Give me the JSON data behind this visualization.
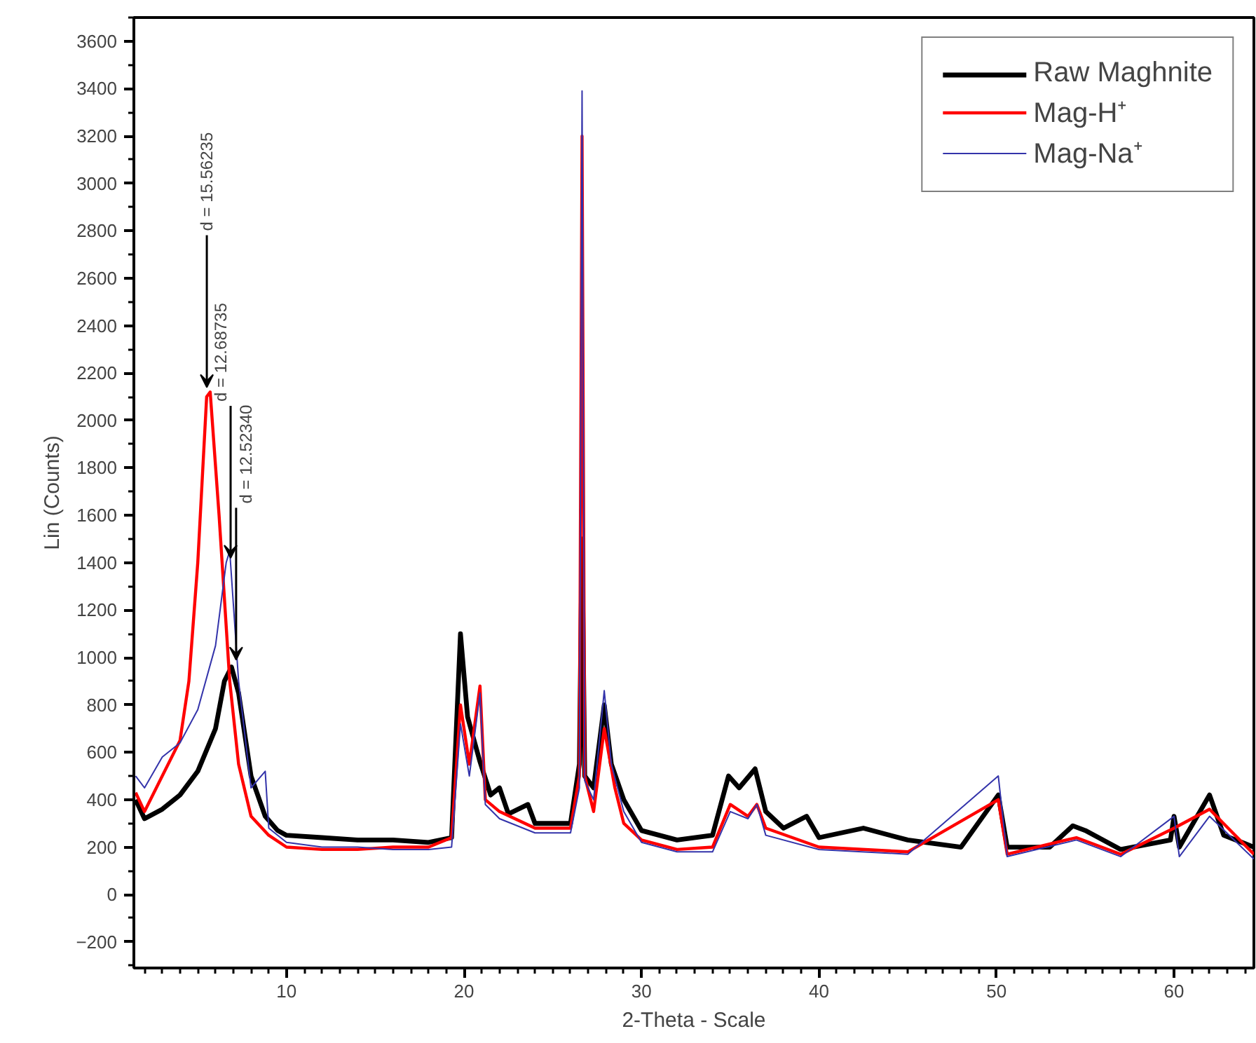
{
  "chart_data": {
    "type": "line",
    "xlabel": "2-Theta - Scale",
    "ylabel": "Lin (Counts)",
    "xlim": [
      1.4,
      64.5
    ],
    "ylim": [
      -310,
      3700
    ],
    "xticks": [
      10,
      20,
      30,
      40,
      50,
      60
    ],
    "yticks": [
      -200,
      0,
      200,
      400,
      600,
      800,
      1000,
      1200,
      1400,
      1600,
      1800,
      2000,
      2200,
      2400,
      2600,
      2800,
      3000,
      3200,
      3400,
      3600
    ],
    "grid": false,
    "legend": "top right",
    "marker": "none",
    "line_style": "solid",
    "series": [
      {
        "name": "Raw Maghnite",
        "color": "#000000",
        "x": [
          1.5,
          2,
          3,
          4,
          5,
          6,
          6.5,
          6.9,
          7.3,
          8,
          8.8,
          9.5,
          10,
          12,
          14,
          16,
          18,
          19.3,
          19.8,
          20.2,
          20.9,
          21.5,
          22,
          22.5,
          23.6,
          24,
          26,
          26.5,
          26.65,
          26.8,
          27.3,
          27.9,
          28.3,
          29,
          30,
          32,
          34,
          34.9,
          35.5,
          36.4,
          37,
          38,
          39.3,
          40,
          42.5,
          45,
          48,
          50.1,
          50.6,
          53,
          54.3,
          55,
          57,
          59.8,
          60,
          60.3,
          62,
          62.8,
          64.5
        ],
        "values": [
          400,
          320,
          360,
          420,
          520,
          700,
          900,
          960,
          850,
          500,
          330,
          270,
          250,
          240,
          230,
          230,
          220,
          240,
          1100,
          750,
          560,
          420,
          450,
          340,
          380,
          300,
          300,
          550,
          1500,
          500,
          450,
          800,
          550,
          400,
          270,
          230,
          250,
          500,
          450,
          530,
          350,
          280,
          330,
          240,
          280,
          230,
          200,
          420,
          200,
          200,
          290,
          270,
          190,
          230,
          330,
          200,
          420,
          250,
          200
        ]
      },
      {
        "name": "Mag-H⁺",
        "color": "#ff0000",
        "x": [
          1.5,
          2,
          3,
          4,
          4.5,
          5,
          5.5,
          5.7,
          6.2,
          6.8,
          7.3,
          8,
          9,
          10,
          12,
          14,
          16,
          18,
          19.3,
          19.8,
          20.3,
          20.9,
          21.2,
          22,
          24,
          26,
          26.5,
          26.65,
          26.8,
          27.3,
          27.9,
          28.5,
          29,
          30,
          32,
          34,
          35,
          36,
          36.5,
          37,
          40,
          45,
          50.1,
          50.6,
          54.5,
          57,
          60,
          62,
          64.5
        ],
        "values": [
          430,
          350,
          500,
          650,
          900,
          1400,
          2100,
          2120,
          1600,
          900,
          550,
          330,
          250,
          200,
          190,
          190,
          200,
          200,
          240,
          800,
          550,
          880,
          400,
          350,
          280,
          280,
          500,
          3200,
          500,
          350,
          700,
          450,
          300,
          230,
          190,
          200,
          380,
          330,
          380,
          280,
          200,
          180,
          400,
          170,
          240,
          170,
          280,
          360,
          170
        ]
      },
      {
        "name": "Mag-Na⁺",
        "color": "#3333aa",
        "x": [
          1.5,
          2,
          3,
          4,
          5,
          6,
          6.6,
          6.8,
          7.3,
          8,
          8.8,
          9,
          10,
          12,
          14,
          16,
          18,
          19.3,
          19.8,
          20.3,
          20.9,
          21.2,
          22,
          24,
          26,
          26.5,
          26.65,
          26.8,
          27.3,
          27.9,
          28.3,
          29,
          30,
          32,
          34,
          35,
          36,
          36.5,
          37,
          40,
          45,
          50.1,
          50.6,
          54.5,
          57,
          60,
          60.3,
          62,
          64.5
        ],
        "values": [
          500,
          450,
          580,
          640,
          780,
          1050,
          1400,
          1450,
          900,
          450,
          520,
          280,
          220,
          200,
          200,
          190,
          190,
          200,
          720,
          500,
          850,
          380,
          320,
          260,
          260,
          450,
          3390,
          480,
          400,
          860,
          550,
          350,
          220,
          180,
          180,
          350,
          320,
          380,
          250,
          190,
          170,
          500,
          160,
          230,
          160,
          330,
          160,
          330,
          150
        ]
      }
    ],
    "annotations": [
      {
        "text": "d = 15.56235",
        "x": 5.51,
        "y": 2140
      },
      {
        "text": "d = 12.68735",
        "x": 6.85,
        "y": 1420
      },
      {
        "text": "d = 12.52340",
        "x": 7.16,
        "y": 990
      }
    ]
  }
}
